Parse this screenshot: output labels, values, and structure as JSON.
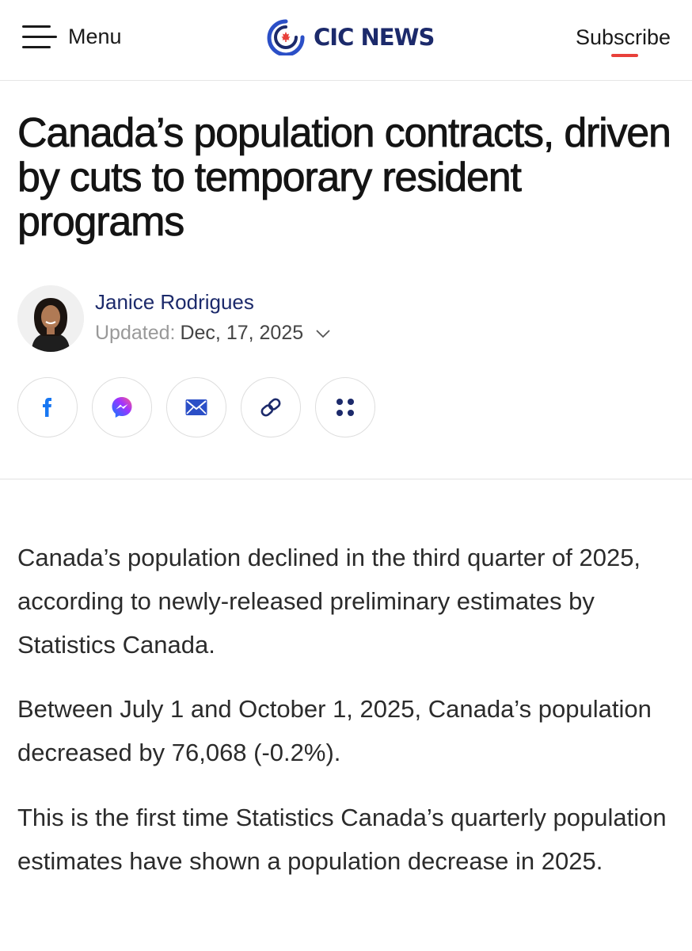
{
  "header": {
    "menu_label": "Menu",
    "logo_text": "CIC NEWS",
    "subscribe_label": "Subscribe"
  },
  "article": {
    "title": "Canada’s population contracts, driven by cuts to temporary resident programs",
    "author": {
      "name": "Janice Rodrigues",
      "updated_label": "Updated:",
      "updated_date": "Dec, 17, 2025"
    },
    "share_icons": [
      "facebook-icon",
      "messenger-icon",
      "email-icon",
      "link-icon",
      "more-icon"
    ],
    "paragraphs": [
      "Canada’s population declined in the third quarter of 2025, according to newly-released preliminary estimates by Statistics Canada.",
      "Between July 1 and October 1, 2025, Canada’s population decreased by 76,068 (-0.2%).",
      "This is the first time Statistics Canada’s quarterly population estimates have shown a population decrease in 2025."
    ]
  },
  "colors": {
    "brand_navy": "#1c2a6b",
    "brand_blue": "#2b4fc7",
    "accent_red": "#e8403a",
    "facebook_blue": "#1877f2"
  }
}
